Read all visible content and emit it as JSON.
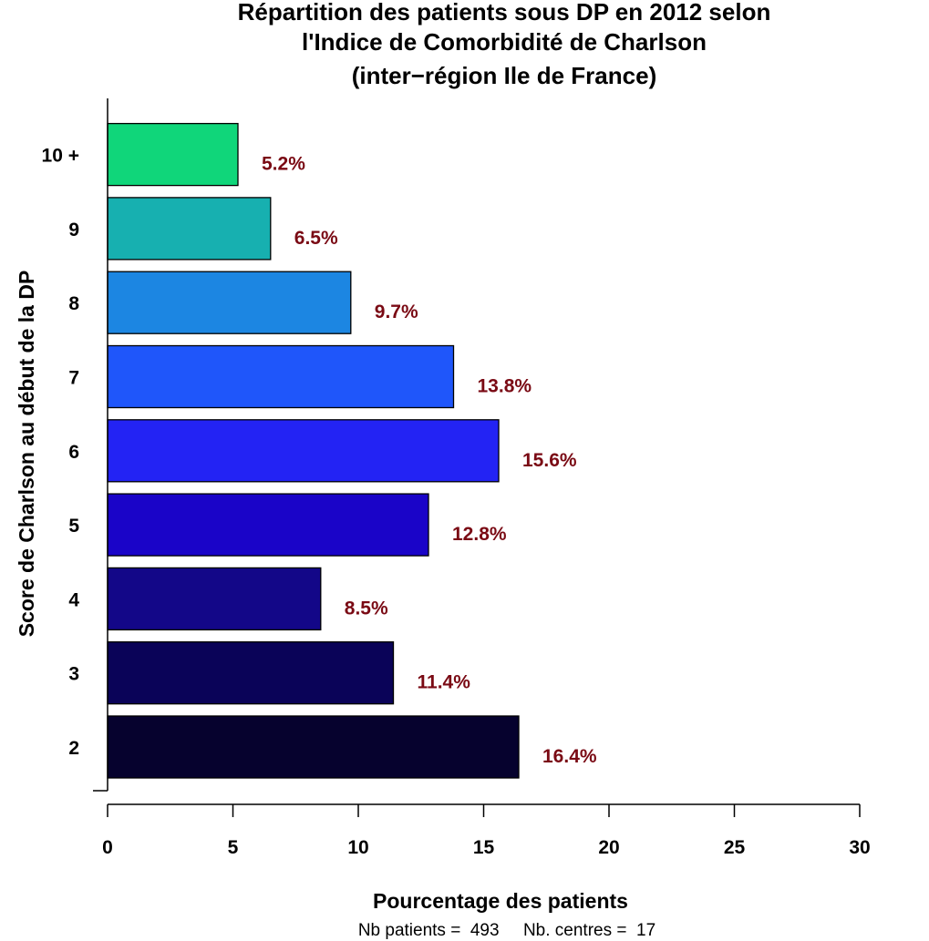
{
  "chart_data": {
    "type": "bar",
    "orientation": "horizontal",
    "title": [
      "Répartition des patients sous DP en 2012 selon",
      "l'Indice de Comorbidité de Charlson",
      "(inter−région Ile de France)"
    ],
    "xlabel": "Pourcentage des patients",
    "ylabel": "Score de Charlson au début de la DP",
    "xlim": [
      0,
      30
    ],
    "xticks": [
      0,
      5,
      10,
      15,
      20,
      25,
      30
    ],
    "categories": [
      "2",
      "3",
      "4",
      "5",
      "6",
      "7",
      "8",
      "9",
      "10 +"
    ],
    "values": [
      16.4,
      11.4,
      8.5,
      12.8,
      15.6,
      13.8,
      9.7,
      6.5,
      5.2
    ],
    "value_labels": [
      "16.4%",
      "11.4%",
      "8.5%",
      "12.8%",
      "15.6%",
      "13.8%",
      "9.7%",
      "6.5%",
      "5.2%"
    ],
    "colors": [
      "#06022e",
      "#0a0358",
      "#130788",
      "#1a04c8",
      "#2323f4",
      "#1f56fa",
      "#1c86e2",
      "#17b0b0",
      "#10d67a"
    ],
    "label_color": "#7a0a14",
    "grid": false,
    "legend": "none",
    "footnote": "Nb patients =  493     Nb. centres =  17"
  }
}
